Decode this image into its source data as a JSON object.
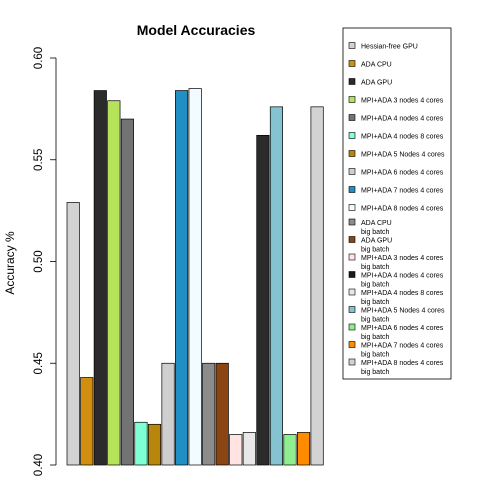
{
  "chart_data": {
    "type": "bar",
    "title": "Model Accuracies",
    "xlabel": "",
    "ylabel": "Accuracy %",
    "ylim": [
      0.4,
      0.6
    ],
    "yticks": [
      "0.40",
      "0.45",
      "0.50",
      "0.55",
      "0.60"
    ],
    "ytick_values": [
      0.4,
      0.45,
      0.5,
      0.55,
      0.6
    ],
    "grid": false,
    "legend_position": "top-right",
    "series": [
      {
        "name": "Hessian-free GPU",
        "color": "#d3d3d3",
        "values": [
          0.529,
          null,
          null
        ]
      },
      {
        "name": "ADA CPU",
        "color": "#d28f0f",
        "values": [
          0.443,
          null,
          null
        ]
      },
      {
        "name": "ADA GPU",
        "color": "#2b2b2b",
        "values": [
          0.584,
          null,
          0.562
        ]
      },
      {
        "name": "MPI+ADA 3 nodes 4 cores",
        "color": "#b5e35a",
        "values": [
          0.579,
          null,
          null
        ]
      },
      {
        "name": "MPI+ADA 4 nodes 4 cores",
        "color": "#737373",
        "values": [
          0.57,
          null,
          null
        ]
      },
      {
        "name": "MPI+ADA 4 nodes 8 cores",
        "color": "#7fffd4",
        "values": [
          0.421,
          null,
          null
        ]
      },
      {
        "name": "MPI+ADA 5 Nodes 4 cores",
        "color": "#b8860b",
        "values": [
          0.42,
          null,
          null
        ]
      },
      {
        "name": "MPI+ADA 6 nodes 4 cores",
        "color": "#cfcfcf",
        "values": [
          0.45,
          null,
          null
        ]
      },
      {
        "name": "MPI+ADA 7 nodes 4 cores",
        "color": "#1f8fc4",
        "values": [
          0.584,
          null,
          null
        ]
      },
      {
        "name": "MPI+ADA 8 nodes 4 cores",
        "color": "#f2fbff",
        "values": [
          0.585,
          null,
          null
        ]
      },
      {
        "name": "ADA CPU big batch",
        "color": "#8c8c8c",
        "values": [
          null,
          0.45,
          null
        ]
      },
      {
        "name": "ADA GPU big batch",
        "color": "#8b4513",
        "values": [
          null,
          0.45,
          null
        ]
      },
      {
        "name": "MPI+ADA 3 nodes 4 cores big batch",
        "color": "#ffe4e1",
        "values": [
          null,
          0.415,
          null
        ]
      },
      {
        "name": "MPI+ADA 4 nodes 4 cores big batch",
        "color": "#1a1a1a",
        "values": [
          null,
          null,
          null
        ]
      },
      {
        "name": "MPI+ADA 4 nodes 8 cores big batch",
        "color": "#e8e8e8",
        "values": [
          null,
          0.416,
          null
        ]
      },
      {
        "name": "MPI+ADA 5 Nodes 4 cores big batch",
        "color": "#84c3cf",
        "values": [
          null,
          null,
          0.576
        ]
      },
      {
        "name": "MPI+ADA 6 nodes 4 cores big batch",
        "color": "#90ee90",
        "values": [
          null,
          null,
          0.415
        ]
      },
      {
        "name": "MPI+ADA 7 nodes 4 cores big batch",
        "color": "#ff8c00",
        "values": [
          null,
          null,
          0.416
        ]
      },
      {
        "name": "MPI+ADA 8 nodes 4 cores big batch",
        "color": "#d3d3d3",
        "values": [
          null,
          null,
          0.576
        ]
      }
    ],
    "legend": [
      [
        "Hessian-free GPU"
      ],
      [
        "ADA CPU"
      ],
      [
        "ADA GPU"
      ],
      [
        "MPI+ADA 3 nodes 4 cores"
      ],
      [
        "MPI+ADA 4 nodes 4 cores"
      ],
      [
        "MPI+ADA 4 nodes 8 cores"
      ],
      [
        "MPI+ADA 5 Nodes 4 cores"
      ],
      [
        "MPI+ADA 6 nodes 4 cores"
      ],
      [
        "MPI+ADA 7 nodes 4 cores"
      ],
      [
        "MPI+ADA 8 nodes 4 cores"
      ],
      [
        "ADA CPU",
        "big batch"
      ],
      [
        "ADA GPU",
        "big batch"
      ],
      [
        "MPI+ADA 3 nodes 4 cores",
        "big batch"
      ],
      [
        "MPI+ADA 4 nodes 4 cores",
        "big batch"
      ],
      [
        "MPI+ADA 4 nodes 8 cores",
        "big batch"
      ],
      [
        "MPI+ADA 5 Nodes 4 cores",
        "big batch"
      ],
      [
        "MPI+ADA 6 nodes 4 cores",
        "big batch"
      ],
      [
        "MPI+ADA 7 nodes 4 cores",
        "big batch"
      ],
      [
        "MPI+ADA 8 nodes 4 cores",
        "big batch"
      ]
    ],
    "bars": [
      {
        "label": "Hessian-free GPU",
        "value": 0.529,
        "color": "#d3d3d3"
      },
      {
        "label": "ADA CPU",
        "value": 0.443,
        "color": "#d28f0f"
      },
      {
        "label": "ADA GPU",
        "value": 0.584,
        "color": "#2b2b2b"
      },
      {
        "label": "MPI+ADA 3 nodes 4 cores",
        "value": 0.579,
        "color": "#b5e35a"
      },
      {
        "label": "MPI+ADA 4 nodes 4 cores",
        "value": 0.57,
        "color": "#737373"
      },
      {
        "label": "MPI+ADA 4 nodes 8 cores",
        "value": 0.421,
        "color": "#7fffd4"
      },
      {
        "label": "MPI+ADA 5 Nodes 4 cores",
        "value": 0.42,
        "color": "#b8860b"
      },
      {
        "label": "MPI+ADA 6 nodes 4 cores",
        "value": 0.45,
        "color": "#cfcfcf"
      },
      {
        "label": "MPI+ADA 7 nodes 4 cores",
        "value": 0.584,
        "color": "#1f8fc4"
      },
      {
        "label": "MPI+ADA 8 nodes 4 cores",
        "value": 0.585,
        "color": "#f2fbff"
      },
      {
        "label": "ADA CPU big batch",
        "value": 0.45,
        "color": "#8c8c8c"
      },
      {
        "label": "ADA GPU big batch",
        "value": 0.45,
        "color": "#8b4513"
      },
      {
        "label": "MPI+ADA 3 nodes 4 cores big batch",
        "value": 0.415,
        "color": "#ffe4e1"
      },
      {
        "label": "MPI+ADA 4 nodes 8 cores big batch",
        "value": 0.416,
        "color": "#e8e8e8"
      },
      {
        "label": "ADA GPU",
        "value": 0.562,
        "color": "#2b2b2b"
      },
      {
        "label": "MPI+ADA 5 Nodes 4 cores big batch",
        "value": 0.576,
        "color": "#84c3cf"
      },
      {
        "label": "MPI+ADA 6 nodes 4 cores big batch",
        "value": 0.415,
        "color": "#90ee90"
      },
      {
        "label": "MPI+ADA 7 nodes 4 cores big batch",
        "value": 0.416,
        "color": "#ff8c00"
      },
      {
        "label": "MPI+ADA 8 nodes 4 cores big batch",
        "value": 0.576,
        "color": "#d3d3d3"
      }
    ]
  }
}
